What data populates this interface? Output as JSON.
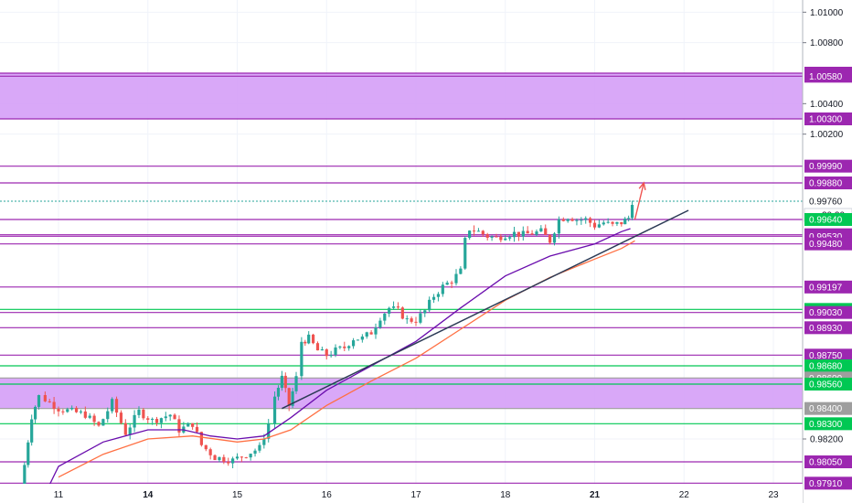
{
  "chart_data": {
    "type": "candlestick",
    "title": "",
    "xlabel": "",
    "ylabel": "",
    "ylim": [
      0.9778,
      1.0108
    ],
    "x_ticks": [
      {
        "label": "11",
        "day": 0,
        "bold": false
      },
      {
        "label": "14",
        "day": 1,
        "bold": true
      },
      {
        "label": "15",
        "day": 2,
        "bold": false
      },
      {
        "label": "16",
        "day": 3,
        "bold": false
      },
      {
        "label": "17",
        "day": 4,
        "bold": false
      },
      {
        "label": "18",
        "day": 5,
        "bold": false
      },
      {
        "label": "21",
        "day": 6,
        "bold": true
      },
      {
        "label": "22",
        "day": 7,
        "bold": false
      },
      {
        "label": "23",
        "day": 8,
        "bold": false
      }
    ],
    "y_ticks": [
      "1.01000",
      "1.00800",
      "1.00400",
      "1.00200",
      "0.98200"
    ],
    "y_tick_values": [
      1.01,
      1.008,
      1.004,
      1.002,
      0.982
    ],
    "zones": [
      {
        "low": 1.003,
        "high": 1.006,
        "color": "#d59ff7"
      },
      {
        "low": 0.984,
        "high": 0.986,
        "color": "#d59ff7"
      }
    ],
    "level_lines": [
      {
        "value": 1.006,
        "label": "1.00600",
        "color": "#9c27b0"
      },
      {
        "value": 1.0058,
        "label": "1.00580",
        "color": "#9c27b0"
      },
      {
        "value": 1.003,
        "label": "1.00300",
        "color": "#9c27b0"
      },
      {
        "value": 0.9999,
        "label": "0.99990",
        "color": "#9c27b0"
      },
      {
        "value": 0.9988,
        "label": "0.99880",
        "color": "#9c27b0"
      },
      {
        "value": 0.9964,
        "label": "0.99640",
        "color": "#9c27b0"
      },
      {
        "value": 0.9954,
        "label": "0.99540",
        "color": "#9c27b0"
      },
      {
        "value": 0.9953,
        "label": "0.99530",
        "color": "#9c27b0"
      },
      {
        "value": 0.9948,
        "label": "0.99480",
        "color": "#9c27b0"
      },
      {
        "value": 0.99197,
        "label": "0.99197",
        "color": "#9c27b0"
      },
      {
        "value": 0.9905,
        "label": "0.99050",
        "color": "#00c853"
      },
      {
        "value": 0.9903,
        "label": "0.99030",
        "color": "#9c27b0"
      },
      {
        "value": 0.9893,
        "label": "0.98930",
        "color": "#9c27b0"
      },
      {
        "value": 0.9875,
        "label": "0.98750",
        "color": "#9c27b0"
      },
      {
        "value": 0.9868,
        "label": "0.98680",
        "color": "#00c853"
      },
      {
        "value": 0.986,
        "label": "0.98600",
        "color": "#9e9e9e"
      },
      {
        "value": 0.9856,
        "label": "0.98560",
        "color": "#00c853"
      },
      {
        "value": 0.984,
        "label": "0.98400",
        "color": "#9e9e9e"
      },
      {
        "value": 0.983,
        "label": "0.98300",
        "color": "#00c853"
      },
      {
        "value": 0.9805,
        "label": "0.98050",
        "color": "#9c27b0"
      },
      {
        "value": 0.9791,
        "label": "0.97910",
        "color": "#9c27b0"
      }
    ],
    "current_price": {
      "value": 0.9976,
      "label": "0.99760",
      "countdown": "30:30",
      "color": "#26a69a"
    },
    "green_marker": {
      "value": 0.9964,
      "label": "0.99640",
      "color": "#00c853"
    },
    "colors": {
      "up": "#26a69a",
      "down": "#ef5350",
      "ma_fast": "#6a0dad",
      "ma_slow": "#ff7043",
      "trendline": "#2b3a55",
      "arrow": "#ef5350"
    },
    "series": [
      {
        "name": "",
        "kind": "ma_fast",
        "points": [
          [
            -0.2,
            0.9778
          ],
          [
            0.0,
            0.9802
          ],
          [
            0.5,
            0.9818
          ],
          [
            1.0,
            0.9826
          ],
          [
            1.4,
            0.9826
          ],
          [
            1.7,
            0.9822
          ],
          [
            2.0,
            0.982
          ],
          [
            2.3,
            0.9822
          ],
          [
            2.6,
            0.9834
          ],
          [
            3.0,
            0.9852
          ],
          [
            3.5,
            0.9868
          ],
          [
            4.0,
            0.9884
          ],
          [
            4.5,
            0.9906
          ],
          [
            5.0,
            0.9927
          ],
          [
            5.5,
            0.994
          ],
          [
            6.0,
            0.9948
          ],
          [
            6.3,
            0.9956
          ],
          [
            6.4,
            0.9958
          ]
        ]
      },
      {
        "name": "",
        "kind": "ma_slow",
        "points": [
          [
            0.0,
            0.9795
          ],
          [
            0.5,
            0.981
          ],
          [
            1.0,
            0.982
          ],
          [
            1.5,
            0.9822
          ],
          [
            2.0,
            0.9818
          ],
          [
            2.3,
            0.982
          ],
          [
            2.6,
            0.9826
          ],
          [
            3.0,
            0.9842
          ],
          [
            3.5,
            0.9858
          ],
          [
            4.0,
            0.9873
          ],
          [
            4.5,
            0.9892
          ],
          [
            5.0,
            0.9911
          ],
          [
            5.5,
            0.9926
          ],
          [
            6.0,
            0.9938
          ],
          [
            6.3,
            0.9945
          ],
          [
            6.45,
            0.995
          ]
        ]
      },
      {
        "name": "",
        "kind": "trendline",
        "points": [
          [
            2.5,
            0.984
          ],
          [
            7.05,
            0.997
          ]
        ]
      },
      {
        "name": "",
        "kind": "arrow",
        "points": [
          [
            6.45,
            0.9964
          ],
          [
            6.55,
            0.9988
          ]
        ]
      }
    ],
    "candles_anchor_points": [
      [
        -0.45,
        0.9778
      ],
      [
        -0.38,
        0.9803
      ],
      [
        -0.3,
        0.9835
      ],
      [
        -0.22,
        0.9848
      ],
      [
        -0.15,
        0.9846
      ],
      [
        0.0,
        0.984
      ],
      [
        0.3,
        0.9836
      ],
      [
        0.45,
        0.9828
      ],
      [
        0.6,
        0.9844
      ],
      [
        0.75,
        0.9824
      ],
      [
        0.9,
        0.9838
      ],
      [
        1.05,
        0.9832
      ],
      [
        1.25,
        0.9836
      ],
      [
        1.35,
        0.9826
      ],
      [
        1.5,
        0.983
      ],
      [
        1.6,
        0.9816
      ],
      [
        1.75,
        0.9808
      ],
      [
        1.95,
        0.9806
      ],
      [
        2.1,
        0.981
      ],
      [
        2.25,
        0.9814
      ],
      [
        2.35,
        0.983
      ],
      [
        2.42,
        0.9848
      ],
      [
        2.5,
        0.986
      ],
      [
        2.58,
        0.9842
      ],
      [
        2.66,
        0.986
      ],
      [
        2.72,
        0.9884
      ],
      [
        2.8,
        0.9886
      ],
      [
        2.9,
        0.9878
      ],
      [
        3.0,
        0.9875
      ],
      [
        3.1,
        0.9878
      ],
      [
        3.2,
        0.988
      ],
      [
        3.3,
        0.9886
      ],
      [
        3.4,
        0.9886
      ],
      [
        3.5,
        0.989
      ],
      [
        3.6,
        0.99
      ],
      [
        3.7,
        0.9906
      ],
      [
        3.8,
        0.9904
      ],
      [
        3.9,
        0.9898
      ],
      [
        4.0,
        0.9898
      ],
      [
        4.1,
        0.9904
      ],
      [
        4.2,
        0.9914
      ],
      [
        4.3,
        0.992
      ],
      [
        4.4,
        0.9924
      ],
      [
        4.5,
        0.993
      ],
      [
        4.55,
        0.995
      ],
      [
        4.6,
        0.9958
      ],
      [
        4.7,
        0.9956
      ],
      [
        4.8,
        0.9953
      ],
      [
        4.9,
        0.9952
      ],
      [
        5.0,
        0.9954
      ],
      [
        5.1,
        0.9955
      ],
      [
        5.2,
        0.9954
      ],
      [
        5.3,
        0.9955
      ],
      [
        5.4,
        0.9956
      ],
      [
        5.5,
        0.995
      ],
      [
        5.6,
        0.9964
      ],
      [
        5.7,
        0.9966
      ],
      [
        5.8,
        0.9964
      ],
      [
        5.9,
        0.9964
      ],
      [
        6.0,
        0.996
      ],
      [
        6.1,
        0.9962
      ],
      [
        6.2,
        0.996
      ],
      [
        6.3,
        0.9962
      ],
      [
        6.38,
        0.9965
      ],
      [
        6.42,
        0.9976
      ]
    ]
  }
}
